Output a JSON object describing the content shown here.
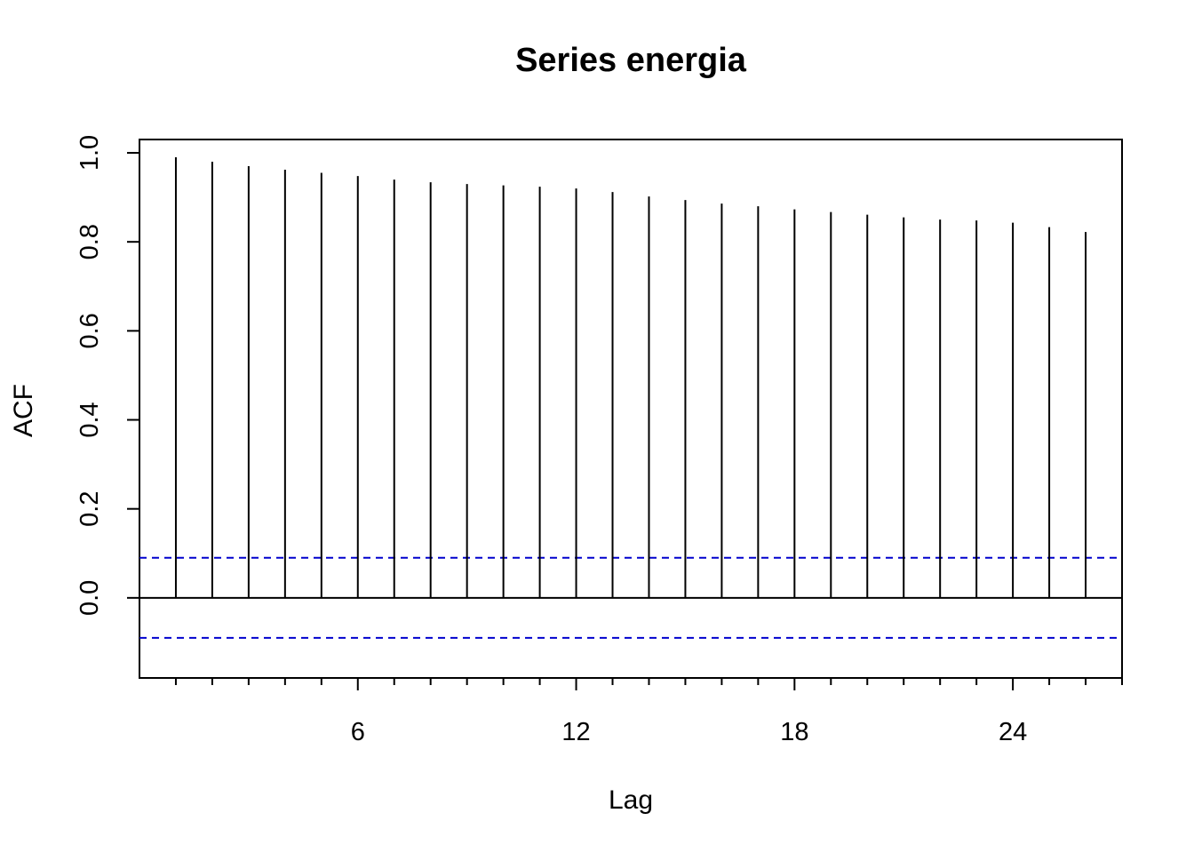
{
  "chart_data": {
    "type": "bar",
    "title": "Series  energia",
    "xlabel": "Lag",
    "ylabel": "ACF",
    "lags": [
      1,
      2,
      3,
      4,
      5,
      6,
      7,
      8,
      9,
      10,
      11,
      12,
      13,
      14,
      15,
      16,
      17,
      18,
      19,
      20,
      21,
      22,
      23,
      24,
      25,
      26
    ],
    "values": [
      0.99,
      0.98,
      0.97,
      0.962,
      0.955,
      0.948,
      0.94,
      0.934,
      0.93,
      0.927,
      0.924,
      0.92,
      0.912,
      0.902,
      0.894,
      0.886,
      0.88,
      0.873,
      0.867,
      0.861,
      0.855,
      0.85,
      0.848,
      0.843,
      0.833,
      0.822
    ],
    "confidence_bound": 0.09,
    "xlim": [
      0,
      27
    ],
    "ylim": [
      -0.18,
      1.03
    ],
    "x_ticks": [
      "6",
      "12",
      "18",
      "24"
    ],
    "y_ticks": [
      "0.0",
      "0.2",
      "0.4",
      "0.6",
      "0.8",
      "1.0"
    ],
    "bar_color": "#000000",
    "ci_color": "#0000CD",
    "grid": false,
    "legend": "none"
  }
}
